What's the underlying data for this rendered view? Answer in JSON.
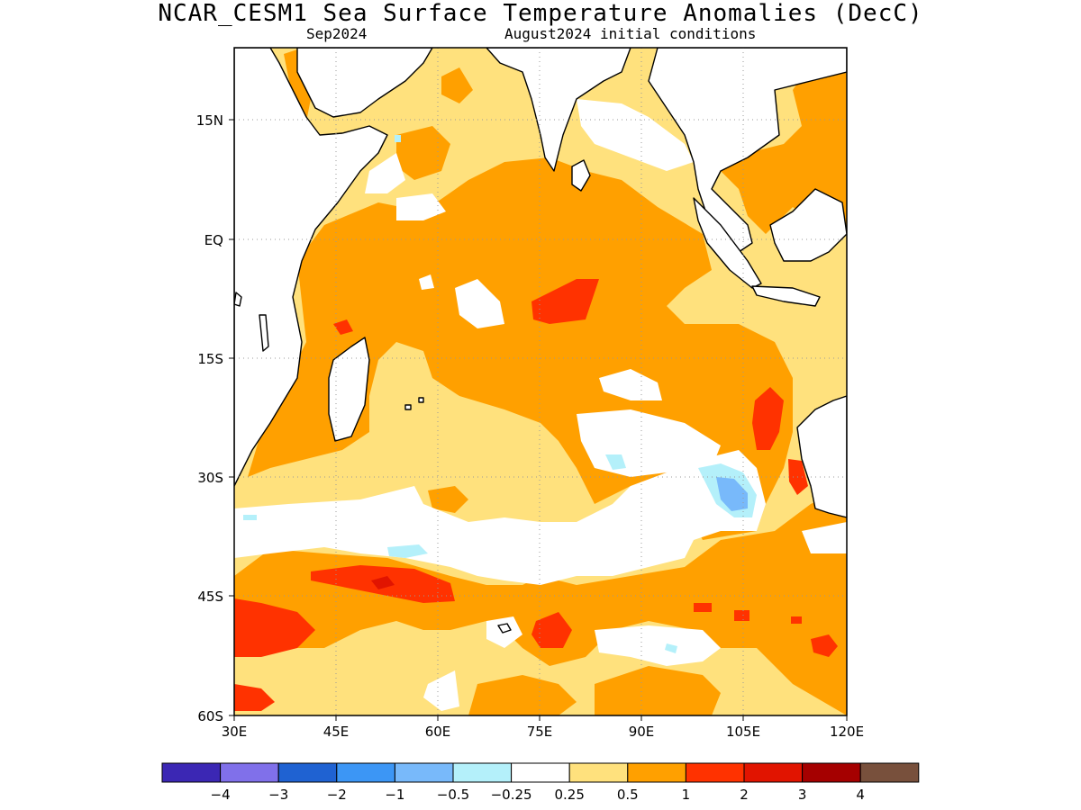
{
  "title": "NCAR_CESM1 Sea Surface Temperature Anomalies (DecC)",
  "subtitle_left": "Sep2024",
  "subtitle_right": "August2024 initial conditions",
  "map": {
    "projection": "lat-lon",
    "lon_range": [
      30,
      120
    ],
    "lat_range": [
      -60,
      24
    ],
    "grid": "dotted",
    "x_ticks": [
      "30E",
      "45E",
      "60E",
      "75E",
      "90E",
      "105E",
      "120E"
    ],
    "y_ticks": [
      "15N",
      "EQ",
      "15S",
      "30S",
      "45S",
      "60S"
    ]
  },
  "colorbar": {
    "colors": [
      "#3b27b4",
      "#8070ea",
      "#1f62d2",
      "#3c96f5",
      "#78b9fa",
      "#b4f0fa",
      "#ffffff",
      "#ffe17d",
      "#ffa000",
      "#ff3200",
      "#e11400",
      "#a50000",
      "#78503c"
    ],
    "labels": [
      "-4",
      "-3",
      "-2",
      "-1",
      "-0.5",
      "-0.25",
      "0.25",
      "0.5",
      "1",
      "2",
      "3",
      "4"
    ]
  }
}
